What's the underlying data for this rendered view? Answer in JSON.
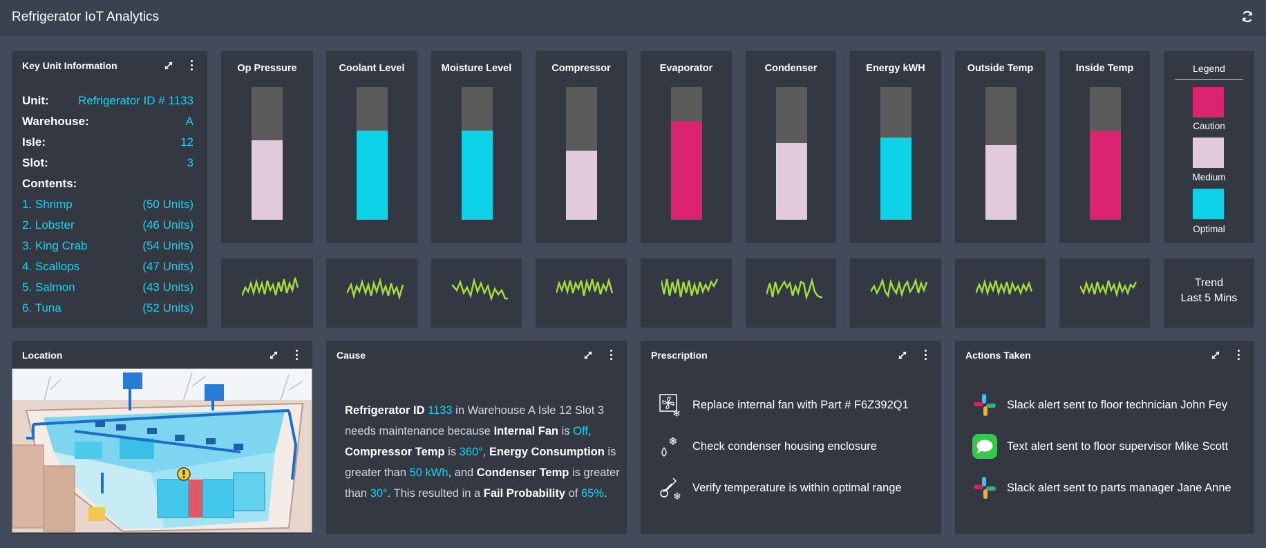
{
  "app": {
    "title": "Refrigerator IoT Analytics"
  },
  "key_unit": {
    "title": "Key Unit Information",
    "fields": [
      {
        "label": "Unit:",
        "value": "Refrigerator ID # 1133"
      },
      {
        "label": "Warehouse:",
        "value": "A"
      },
      {
        "label": "Isle:",
        "value": "12"
      },
      {
        "label": "Slot:",
        "value": "3"
      }
    ],
    "contents_label": "Contents:",
    "contents": [
      {
        "name": "1. Shrimp",
        "units": "(50 Units)"
      },
      {
        "name": "2. Lobster",
        "units": "(46 Units)"
      },
      {
        "name": "3. King Crab",
        "units": "(54 Units)"
      },
      {
        "name": "4. Scallops",
        "units": "(47 Units)"
      },
      {
        "name": "5. Salmon",
        "units": "(43 Units)"
      },
      {
        "name": "6. Tuna",
        "units": "(52 Units)"
      }
    ]
  },
  "colors": {
    "caution": "#db2370",
    "medium": "#e0cadb",
    "optimal": "#0dd2e8",
    "empty": "#5b5b5b",
    "spark": "#a2dc3f",
    "accent": "#19d3ee"
  },
  "gauges": [
    {
      "label": "Op Pressure",
      "level": 0.6,
      "status": "medium"
    },
    {
      "label": "Coolant Level",
      "level": 0.67,
      "status": "optimal"
    },
    {
      "label": "Moisture Level",
      "level": 0.67,
      "status": "optimal"
    },
    {
      "label": "Compressor",
      "level": 0.52,
      "status": "medium"
    },
    {
      "label": "Evaporator",
      "level": 0.74,
      "status": "caution"
    },
    {
      "label": "Condenser",
      "level": 0.58,
      "status": "medium"
    },
    {
      "label": "Energy kWH",
      "level": 0.62,
      "status": "optimal"
    },
    {
      "label": "Outside Temp",
      "level": 0.56,
      "status": "medium"
    },
    {
      "label": "Inside Temp",
      "level": 0.67,
      "status": "caution"
    }
  ],
  "legend": {
    "title": "Legend",
    "items": [
      {
        "label": "Caution",
        "status": "caution"
      },
      {
        "label": "Medium",
        "status": "medium"
      },
      {
        "label": "Optimal",
        "status": "optimal"
      }
    ]
  },
  "trend": {
    "line1": "Trend",
    "line2": "Last 5 Mins"
  },
  "location": {
    "title": "Location"
  },
  "cause": {
    "title": "Cause",
    "segments": [
      {
        "t": "Refrigerator ID ",
        "s": "b"
      },
      {
        "t": "1133",
        "s": "h"
      },
      {
        "t": " in Warehouse A Isle 12 Slot 3 needs maintenance because ",
        "s": "n"
      },
      {
        "t": "Internal Fan",
        "s": "b"
      },
      {
        "t": " is ",
        "s": "n"
      },
      {
        "t": "Off",
        "s": "h"
      },
      {
        "t": ", ",
        "s": "n"
      },
      {
        "t": "Compressor Temp",
        "s": "b"
      },
      {
        "t": " is ",
        "s": "n"
      },
      {
        "t": "360°",
        "s": "h"
      },
      {
        "t": ", ",
        "s": "n"
      },
      {
        "t": "Energy Consumption",
        "s": "b"
      },
      {
        "t": " is greater than ",
        "s": "n"
      },
      {
        "t": "50 kWh",
        "s": "h"
      },
      {
        "t": ", and ",
        "s": "n"
      },
      {
        "t": "Condenser Temp",
        "s": "b"
      },
      {
        "t": " is greater than ",
        "s": "n"
      },
      {
        "t": "30°",
        "s": "h"
      },
      {
        "t": ". This resulted in a ",
        "s": "n"
      },
      {
        "t": "Fail Probability",
        "s": "b"
      },
      {
        "t": " of ",
        "s": "n"
      },
      {
        "t": "65%",
        "s": "h"
      },
      {
        "t": ".",
        "s": "n"
      }
    ]
  },
  "prescription": {
    "title": "Prescription",
    "items": [
      {
        "icon": "fan-snowflake-icon",
        "text": "Replace internal fan with Part # F6Z392Q1"
      },
      {
        "icon": "condenser-drop-icon",
        "text": "Check condenser housing enclosure"
      },
      {
        "icon": "thermometer-snowflake-icon",
        "text": "Verify temperature is within optimal range"
      }
    ]
  },
  "actions": {
    "title": "Actions Taken",
    "items": [
      {
        "icon": "slack-icon",
        "text": "Slack alert sent to floor technician John Fey"
      },
      {
        "icon": "messages-icon",
        "text": "Text alert sent to floor supervisor Mike Scott"
      },
      {
        "icon": "slack-icon",
        "text": "Slack alert sent to parts manager Jane Anne"
      }
    ]
  }
}
